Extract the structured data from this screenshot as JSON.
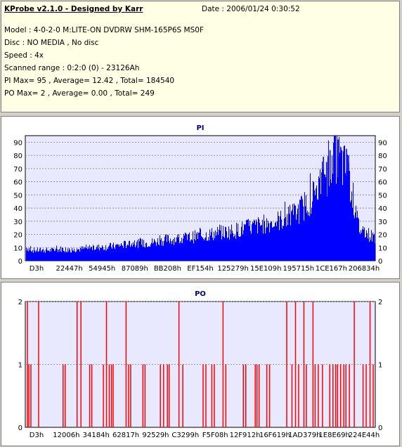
{
  "header": {
    "title": "KProbe v2.1.0 - Designed by Karr",
    "date": "Date : 2006/01/24 0:30:52",
    "lines": [
      "Model : 4-0-2-0 M:LITE-ON DVDRW SHM-165P6S MS0F",
      "Disc : NO MEDIA , No disc",
      "Speed : 4x",
      "Scanned range : 0:2:0 (0) - 23126Ah",
      "PI Max= 95 , Average= 12.42 , Total= 184540",
      "PO Max= 2 , Average= 0.00 , Total= 249"
    ]
  },
  "colors": {
    "pi_bars": "#0000ff",
    "po_bars": "#ff0000",
    "grid": "#808080",
    "plot_bg": "#e8e8ff"
  },
  "chart_data": [
    {
      "type": "bar",
      "title": "PI",
      "xlabel": "",
      "ylabel": "",
      "ylim": [
        0,
        95
      ],
      "yticks": [
        0,
        10,
        20,
        30,
        40,
        50,
        60,
        70,
        80,
        90
      ],
      "xticks": [
        "D3h",
        "22447h",
        "54945h",
        "87089h",
        "BB208h",
        "EF154h",
        "125279h",
        "15E109h",
        "195715h",
        "1CE167h",
        "206834h"
      ],
      "grid": true,
      "x_range": [
        "0",
        "23126Ah"
      ],
      "max": 95,
      "profile": [
        [
          0,
          10
        ],
        [
          2,
          8
        ],
        [
          5,
          8
        ],
        [
          8,
          8
        ],
        [
          10,
          9
        ],
        [
          13,
          8
        ],
        [
          16,
          9
        ],
        [
          20,
          10
        ],
        [
          25,
          11
        ],
        [
          30,
          13
        ],
        [
          33,
          13
        ],
        [
          36,
          14
        ],
        [
          40,
          16
        ],
        [
          45,
          17
        ],
        [
          50,
          19
        ],
        [
          55,
          21
        ],
        [
          60,
          23
        ],
        [
          65,
          26
        ],
        [
          70,
          29
        ],
        [
          73,
          31
        ],
        [
          76,
          34
        ],
        [
          78,
          38
        ],
        [
          80,
          43
        ],
        [
          82,
          49
        ],
        [
          84,
          57
        ],
        [
          86,
          66
        ],
        [
          87.5,
          74
        ],
        [
          88.5,
          80
        ],
        [
          89.5,
          78
        ],
        [
          90.5,
          72
        ],
        [
          91.5,
          70
        ],
        [
          92.5,
          62
        ],
        [
          93.5,
          48
        ],
        [
          94.5,
          33
        ],
        [
          95.5,
          24
        ],
        [
          97,
          22
        ],
        [
          98.5,
          19
        ],
        [
          100,
          18
        ]
      ],
      "peaks": [
        [
          88.3,
          95
        ],
        [
          89.2,
          92
        ],
        [
          90.0,
          86
        ],
        [
          90.9,
          87
        ],
        [
          91.6,
          85
        ],
        [
          92.2,
          80
        ],
        [
          86.9,
          84
        ],
        [
          85.9,
          75
        ],
        [
          85.0,
          79
        ]
      ]
    },
    {
      "type": "bar",
      "title": "PO",
      "xlabel": "",
      "ylabel": "",
      "ylim": [
        0,
        2
      ],
      "yticks": [
        0,
        1,
        2
      ],
      "xticks": [
        "D3h",
        "12006h",
        "34184h",
        "62817h",
        "92529h",
        "C3299h",
        "F5F08h",
        "12F912h",
        "16F619h",
        "1AD379h",
        "1E8E69h",
        "224E44h"
      ],
      "grid": true,
      "x_range": [
        "0",
        "23126Ah"
      ],
      "max": 2,
      "bars": [
        [
          0.6,
          2
        ],
        [
          1.0,
          1
        ],
        [
          1.6,
          1
        ],
        [
          3.8,
          2
        ],
        [
          10.8,
          1
        ],
        [
          11.4,
          1
        ],
        [
          14.8,
          2
        ],
        [
          15.9,
          2
        ],
        [
          18.4,
          1
        ],
        [
          19.0,
          1
        ],
        [
          22.3,
          1
        ],
        [
          23.2,
          2
        ],
        [
          24.0,
          1
        ],
        [
          24.6,
          1
        ],
        [
          25.1,
          1
        ],
        [
          28.8,
          2
        ],
        [
          29.5,
          1
        ],
        [
          30.1,
          1
        ],
        [
          33.6,
          1
        ],
        [
          34.2,
          1
        ],
        [
          38.6,
          1
        ],
        [
          39.5,
          1
        ],
        [
          40.6,
          1
        ],
        [
          41.1,
          1
        ],
        [
          43.9,
          2
        ],
        [
          45.0,
          1
        ],
        [
          50.8,
          1
        ],
        [
          51.6,
          1
        ],
        [
          53.3,
          1
        ],
        [
          54.0,
          1
        ],
        [
          56.5,
          2
        ],
        [
          57.3,
          1
        ],
        [
          62.3,
          1
        ],
        [
          63.0,
          1
        ],
        [
          65.7,
          1
        ],
        [
          66.2,
          1
        ],
        [
          66.8,
          1
        ],
        [
          69.0,
          1
        ],
        [
          69.8,
          1
        ],
        [
          74.7,
          2
        ],
        [
          76.2,
          1
        ],
        [
          77.2,
          2
        ],
        [
          78.1,
          1
        ],
        [
          79.6,
          2
        ],
        [
          80.3,
          1
        ],
        [
          82.2,
          2
        ],
        [
          82.8,
          1
        ],
        [
          83.7,
          1
        ],
        [
          84.9,
          1
        ],
        [
          87.0,
          1
        ],
        [
          87.9,
          1
        ],
        [
          88.7,
          1
        ],
        [
          89.2,
          1
        ],
        [
          90.1,
          1
        ],
        [
          91.0,
          1
        ],
        [
          91.6,
          1
        ],
        [
          92.6,
          1
        ],
        [
          94.0,
          2
        ],
        [
          96.5,
          1
        ],
        [
          97.4,
          1
        ],
        [
          98.5,
          2
        ],
        [
          99.4,
          1
        ]
      ]
    }
  ]
}
